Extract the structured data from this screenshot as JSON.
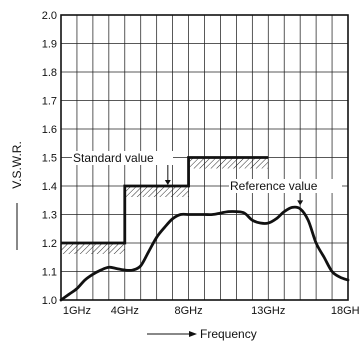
{
  "chart_data": {
    "type": "line",
    "title": "",
    "xlabel": "Frequency",
    "ylabel": "V.S.W.R.",
    "xlim": [
      0,
      18
    ],
    "ylim": [
      1.0,
      2.0
    ],
    "grid": true,
    "x_tick_labels": [
      {
        "x": 1,
        "label": "1GHz"
      },
      {
        "x": 4,
        "label": "4GHz"
      },
      {
        "x": 8,
        "label": "8GHz"
      },
      {
        "x": 13,
        "label": "13GHz"
      },
      {
        "x": 18,
        "label": "18GHz"
      }
    ],
    "y_ticks": [
      1.0,
      1.1,
      1.2,
      1.3,
      1.4,
      1.5,
      1.6,
      1.7,
      1.8,
      1.9,
      2.0
    ],
    "y_tick_labels": [
      "1.0",
      "1.1",
      "1.2",
      "1.3",
      "1.4",
      "1.5",
      "1.6",
      "1.7",
      "1.8",
      "1.9",
      "2.0"
    ],
    "series": [
      {
        "name": "Standard value",
        "style": "step",
        "x": [
          0,
          4,
          4,
          8,
          8,
          13
        ],
        "y": [
          1.2,
          1.2,
          1.4,
          1.4,
          1.5,
          1.5
        ]
      },
      {
        "name": "Reference value",
        "style": "curve",
        "x": [
          0,
          0.5,
          1,
          1.5,
          2,
          2.5,
          3,
          3.5,
          4,
          4.5,
          5,
          5.5,
          6,
          6.5,
          7,
          7.5,
          8,
          8.5,
          9,
          9.5,
          10,
          10.5,
          11,
          11.5,
          12,
          12.5,
          13,
          13.5,
          14,
          14.5,
          15,
          15.5,
          16,
          16.5,
          17,
          17.5,
          18
        ],
        "y": [
          1.0,
          1.02,
          1.04,
          1.07,
          1.09,
          1.105,
          1.115,
          1.11,
          1.105,
          1.105,
          1.12,
          1.17,
          1.22,
          1.255,
          1.285,
          1.3,
          1.3,
          1.3,
          1.3,
          1.3,
          1.305,
          1.31,
          1.31,
          1.305,
          1.28,
          1.27,
          1.27,
          1.285,
          1.31,
          1.325,
          1.32,
          1.28,
          1.2,
          1.15,
          1.1,
          1.08,
          1.07
        ]
      }
    ],
    "annotations": [
      {
        "text": "Standard value",
        "x": 6.7,
        "y": 1.4
      },
      {
        "text": "Reference value",
        "x": 15.0,
        "y": 1.325
      }
    ]
  }
}
